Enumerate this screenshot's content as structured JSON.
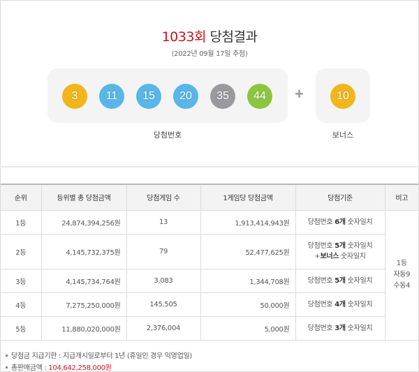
{
  "header": {
    "round": "1033회",
    "title": "당첨결과",
    "draw_date": "(2022년 09월 17일 추첨)"
  },
  "draw": {
    "numbers": [
      {
        "value": "3",
        "color": "#f1b61b"
      },
      {
        "value": "11",
        "color": "#58b6e8"
      },
      {
        "value": "15",
        "color": "#58b6e8"
      },
      {
        "value": "20",
        "color": "#58b6e8"
      },
      {
        "value": "35",
        "color": "#9a9a9e"
      },
      {
        "value": "44",
        "color": "#8cc63f"
      }
    ],
    "numbers_caption": "당첨번호",
    "plus": "+",
    "bonus": {
      "value": "10",
      "color": "#f1b61b"
    },
    "bonus_caption": "보너스"
  },
  "table": {
    "headers": [
      "순위",
      "등위별 총 당첨금액",
      "당첨게임 수",
      "1게임당 당첨금액",
      "당첨기준",
      "비고"
    ],
    "rows": [
      {
        "rank": "1등",
        "total": "24,874,394,256원",
        "games": "13",
        "per_game": "1,913,414,943원",
        "criteria_pre": "당첨번호 ",
        "criteria_bold": "6개",
        "criteria_post": " 숫자일치"
      },
      {
        "rank": "2등",
        "total": "4,145,732,375원",
        "games": "79",
        "per_game": "52,477,625원",
        "criteria_pre": "당첨번호 ",
        "criteria_bold": "5개",
        "criteria_post": " 숫자일치",
        "criteria_line2_pre": "+",
        "criteria_line2_bold": "보너스",
        "criteria_line2_post": " 숫자일치"
      },
      {
        "rank": "3등",
        "total": "4,145,734,764원",
        "games": "3,083",
        "per_game": "1,344,708원",
        "criteria_pre": "당첨번호 ",
        "criteria_bold": "5개",
        "criteria_post": " 숫자일치"
      },
      {
        "rank": "4등",
        "total": "7,275,250,000원",
        "games": "145,505",
        "per_game": "50,000원",
        "criteria_pre": "당첨번호 ",
        "criteria_bold": "4개",
        "criteria_post": " 숫자일치"
      },
      {
        "rank": "5등",
        "total": "11,880,020,000원",
        "games": "2,376,004",
        "per_game": "5,000원",
        "criteria_pre": "당첨번호 ",
        "criteria_bold": "3개",
        "criteria_post": " 숫자일치"
      }
    ],
    "note": {
      "line1": "1등",
      "line2": "자동9",
      "line3": "수동4"
    }
  },
  "footer": {
    "deadline_label": "당첨금 지급기한 : 지급개시일로부터 1년 (휴일인 경우 익영업일)",
    "sales_label": "총판매금액 : ",
    "sales_value": "104,642,258,000원"
  }
}
